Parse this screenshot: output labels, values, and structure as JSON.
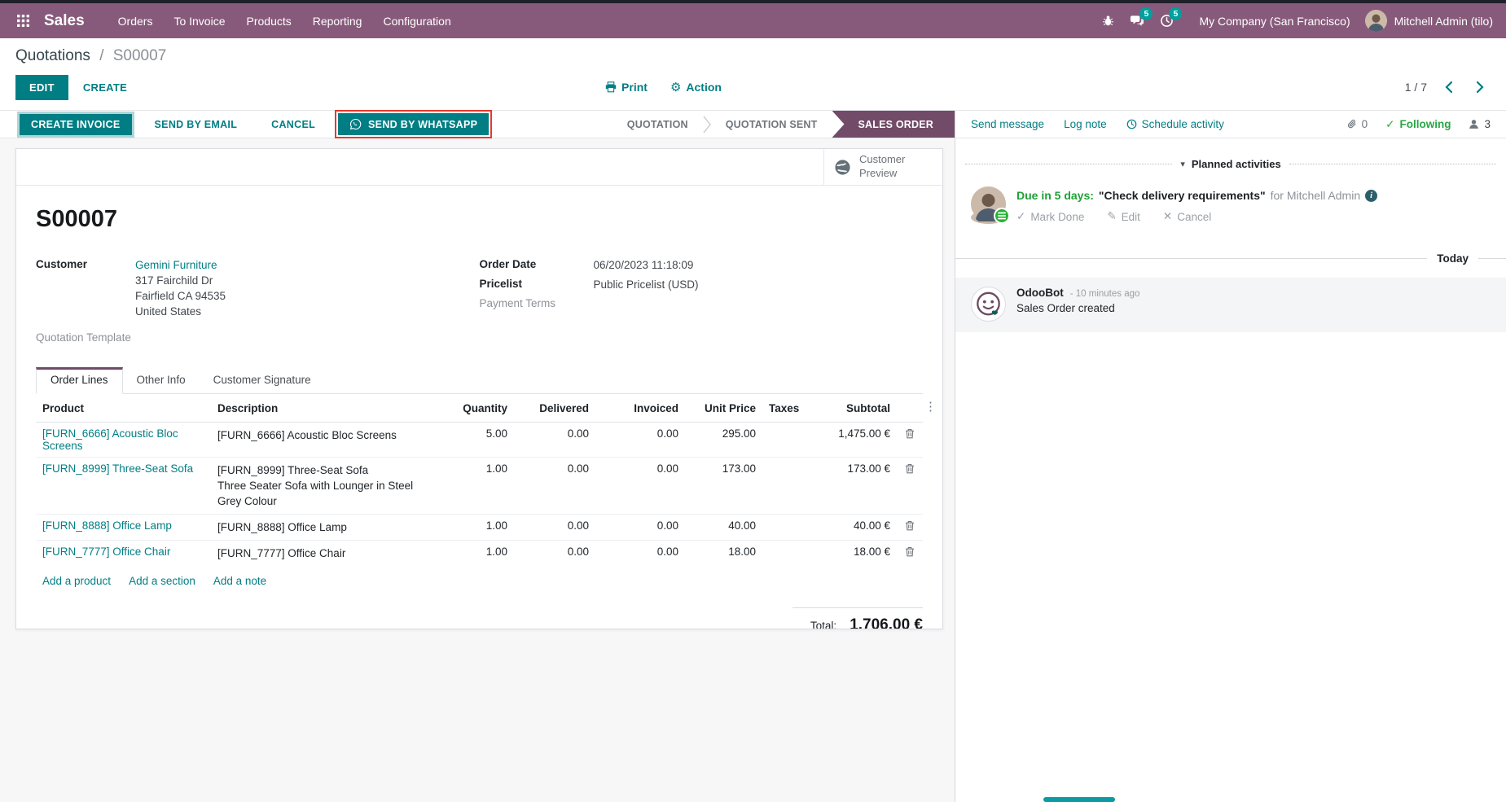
{
  "colors": {
    "navbar_purple": "#875A7B",
    "status_active_purple": "#714B67",
    "primary_teal": "#017e84",
    "badge_teal": "#00A09D",
    "annotation_red": "#e63a2e",
    "following_green": "#28a745",
    "due_green": "#1ea233",
    "highlight_blue": "#2a88c9"
  },
  "icons": {
    "apps": "grid-3x3",
    "bug": "bug",
    "messages": "chat-bubbles",
    "activities": "clock",
    "printer": "printer",
    "gear": "⚙",
    "chevron_left": "‹",
    "chevron_right": "›",
    "whatsapp": "whatsapp-logo",
    "globe": "globe",
    "kebab": "⋮",
    "trash": "trash",
    "clock": "clock",
    "paperclip": "paperclip",
    "person": "person",
    "check": "✓",
    "pencil": "✎",
    "cross": "✕",
    "caret_down": "▾",
    "info": "i"
  },
  "app": {
    "brand": "Sales",
    "menus": [
      "Orders",
      "To Invoice",
      "Products",
      "Reporting",
      "Configuration"
    ]
  },
  "topbar": {
    "messages_badge": "5",
    "activities_badge": "5",
    "company": "My Company (San Francisco)",
    "user": "Mitchell Admin (tilo)"
  },
  "control": {
    "breadcrumb_parent": "Quotations",
    "breadcrumb_sep": "/",
    "breadcrumb_current": "S00007",
    "edit": "EDIT",
    "create": "CREATE",
    "print": "Print",
    "action": "Action",
    "pager": "1 / 7"
  },
  "statusbar": {
    "create_invoice": "CREATE INVOICE",
    "send_by_email": "SEND BY EMAIL",
    "cancel": "CANCEL",
    "send_by_whatsapp": "SEND BY WHATSAPP",
    "states": [
      {
        "label": "QUOTATION",
        "active": false
      },
      {
        "label": "QUOTATION SENT",
        "active": false
      },
      {
        "label": "SALES ORDER",
        "active": true
      }
    ]
  },
  "sheet": {
    "customer_preview": "Customer Preview",
    "title": "S00007",
    "fields": {
      "customer_label": "Customer",
      "customer_value": "Gemini Furniture",
      "customer_address": [
        "317 Fairchild Dr",
        "Fairfield CA 94535",
        "United States"
      ],
      "quotation_template_label": "Quotation Template",
      "order_date_label": "Order Date",
      "order_date_value": "06/20/2023 11:18:09",
      "pricelist_label": "Pricelist",
      "pricelist_value": "Public Pricelist (USD)",
      "payment_terms_label": "Payment Terms"
    },
    "tabs": [
      {
        "label": "Order Lines",
        "active": true
      },
      {
        "label": "Other Info",
        "active": false
      },
      {
        "label": "Customer Signature",
        "active": false
      }
    ],
    "order_lines": {
      "headers": [
        "Product",
        "Description",
        "Quantity",
        "Delivered",
        "Invoiced",
        "Unit Price",
        "Taxes",
        "Subtotal"
      ],
      "rows": [
        {
          "product": "[FURN_6666] Acoustic Bloc Screens",
          "description": [
            "[FURN_6666] Acoustic Bloc Screens"
          ],
          "quantity": "5.00",
          "delivered": "0.00",
          "invoiced": "0.00",
          "unit_price": "295.00",
          "taxes": "",
          "subtotal": "1,475.00 €",
          "highlighted": false
        },
        {
          "product": "[FURN_8999] Three-Seat Sofa",
          "description": [
            "[FURN_8999] Three-Seat Sofa",
            "Three Seater Sofa with Lounger in Steel Grey Colour"
          ],
          "quantity": "1.00",
          "delivered": "0.00",
          "invoiced": "0.00",
          "unit_price": "173.00",
          "taxes": "",
          "subtotal": "173.00 €",
          "highlighted": true
        },
        {
          "product": "[FURN_8888] Office Lamp",
          "description": [
            "[FURN_8888] Office Lamp"
          ],
          "quantity": "1.00",
          "delivered": "0.00",
          "invoiced": "0.00",
          "unit_price": "40.00",
          "taxes": "",
          "subtotal": "40.00 €",
          "highlighted": false
        },
        {
          "product": "[FURN_7777] Office Chair",
          "description": [
            "[FURN_7777] Office Chair"
          ],
          "quantity": "1.00",
          "delivered": "0.00",
          "invoiced": "0.00",
          "unit_price": "18.00",
          "taxes": "",
          "subtotal": "18.00 €",
          "highlighted": false
        }
      ],
      "footer_links": [
        "Add a product",
        "Add a section",
        "Add a note"
      ],
      "total_label": "Total:",
      "total_value": "1,706.00 €"
    }
  },
  "chatter": {
    "send_message": "Send message",
    "log_note": "Log note",
    "schedule_activity": "Schedule activity",
    "attachments_count": "0",
    "following": "Following",
    "followers_count": "3",
    "planned_activities_title": "Planned activities",
    "activity": {
      "due": "Due in 5 days:",
      "summary": "\"Check delivery requirements\"",
      "assignee": "for Mitchell Admin",
      "actions": {
        "mark_done": "Mark Done",
        "edit": "Edit",
        "cancel": "Cancel"
      }
    },
    "date_separator": "Today",
    "messages": [
      {
        "author": "OdooBot",
        "time": "- 10 minutes ago",
        "body": "Sales Order created"
      }
    ]
  }
}
